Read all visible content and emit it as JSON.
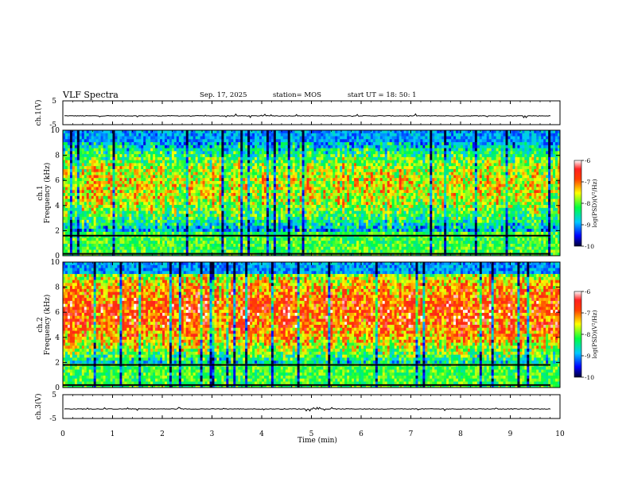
{
  "header": {
    "title": "VLF Spectra",
    "date": "Sep. 17, 2025",
    "station": "station= MOS",
    "start_time": "start  UT =   18: 50: 1"
  },
  "chart_data": [
    {
      "type": "line",
      "name": "ch1-waveform",
      "ylabel": "ch.1(V)",
      "ylim": [
        -5,
        5
      ],
      "yticks": [
        "5",
        "-5"
      ],
      "xlim": [
        0,
        10
      ],
      "baseline_value": -1.3,
      "color": "#000000"
    },
    {
      "type": "heatmap",
      "name": "ch1-spectrogram",
      "ylabel": "ch.1\nFrequency (kHz)",
      "ylim": [
        0,
        10
      ],
      "yticks": [
        "0",
        "2",
        "4",
        "6",
        "8",
        "10"
      ],
      "xlim": [
        0,
        10
      ],
      "colorbar": {
        "label": "log(PSD)(V²/Hz)",
        "range": [
          -10,
          -6
        ],
        "ticks": [
          "-6",
          "-7",
          "-8",
          "-9",
          "-10"
        ]
      },
      "band_center_khz": 5.5,
      "band_intensity": 0.62,
      "lines_khz": [
        1.6,
        0.15
      ],
      "line_color": "#000000"
    },
    {
      "type": "heatmap",
      "name": "ch2-spectrogram",
      "ylabel": "ch.2\nFrequency (kHz)",
      "ylim": [
        0,
        10
      ],
      "yticks": [
        "0",
        "2",
        "4",
        "6",
        "8",
        "10"
      ],
      "xlim": [
        0,
        10
      ],
      "colorbar": {
        "label": "log(PSD)(V²/Hz)",
        "range": [
          -10,
          -6
        ],
        "ticks": [
          "-6",
          "-7",
          "-8",
          "-9",
          "-10"
        ]
      },
      "band_center_khz": 6.0,
      "band_intensity": 0.8,
      "lines_khz": [
        1.8,
        0.2
      ],
      "line_color": "#000000"
    },
    {
      "type": "line",
      "name": "ch3-waveform",
      "ylabel": "ch.3(V)",
      "ylim": [
        -5,
        5
      ],
      "yticks": [
        "5",
        "-5"
      ],
      "xlim": [
        0,
        10
      ],
      "baseline_value": -1.0,
      "color": "#000000"
    }
  ],
  "x_axis": {
    "label": "Time  (min)",
    "ticks": [
      "0",
      "1",
      "2",
      "3",
      "4",
      "5",
      "6",
      "7",
      "8",
      "9",
      "10"
    ]
  }
}
